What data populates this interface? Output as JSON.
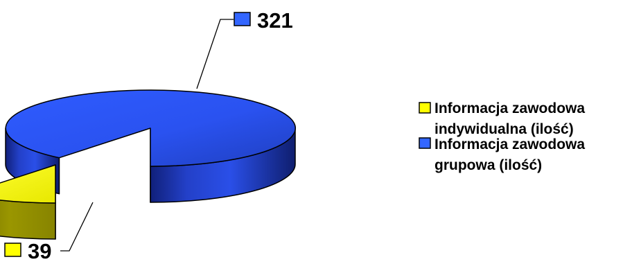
{
  "chart_data": {
    "type": "pie",
    "style": "3d-exploded",
    "categories": [
      "Informacja zawodowa indywidualna (ilość)",
      "Informacja zawodowa grupowa (ilość)"
    ],
    "values": [
      39,
      321
    ],
    "data_labels": [
      "39",
      "321"
    ],
    "colors": [
      "#FFFF00",
      "#3366FF"
    ],
    "legend": {
      "position": "right",
      "entries": [
        {
          "lines": [
            "Informacja zawodowa",
            "indywidualna (ilość)"
          ],
          "color": "#FFFF00"
        },
        {
          "lines": [
            "Informacja zawodowa",
            "grupowa (ilość)"
          ],
          "color": "#3366FF"
        }
      ]
    }
  }
}
